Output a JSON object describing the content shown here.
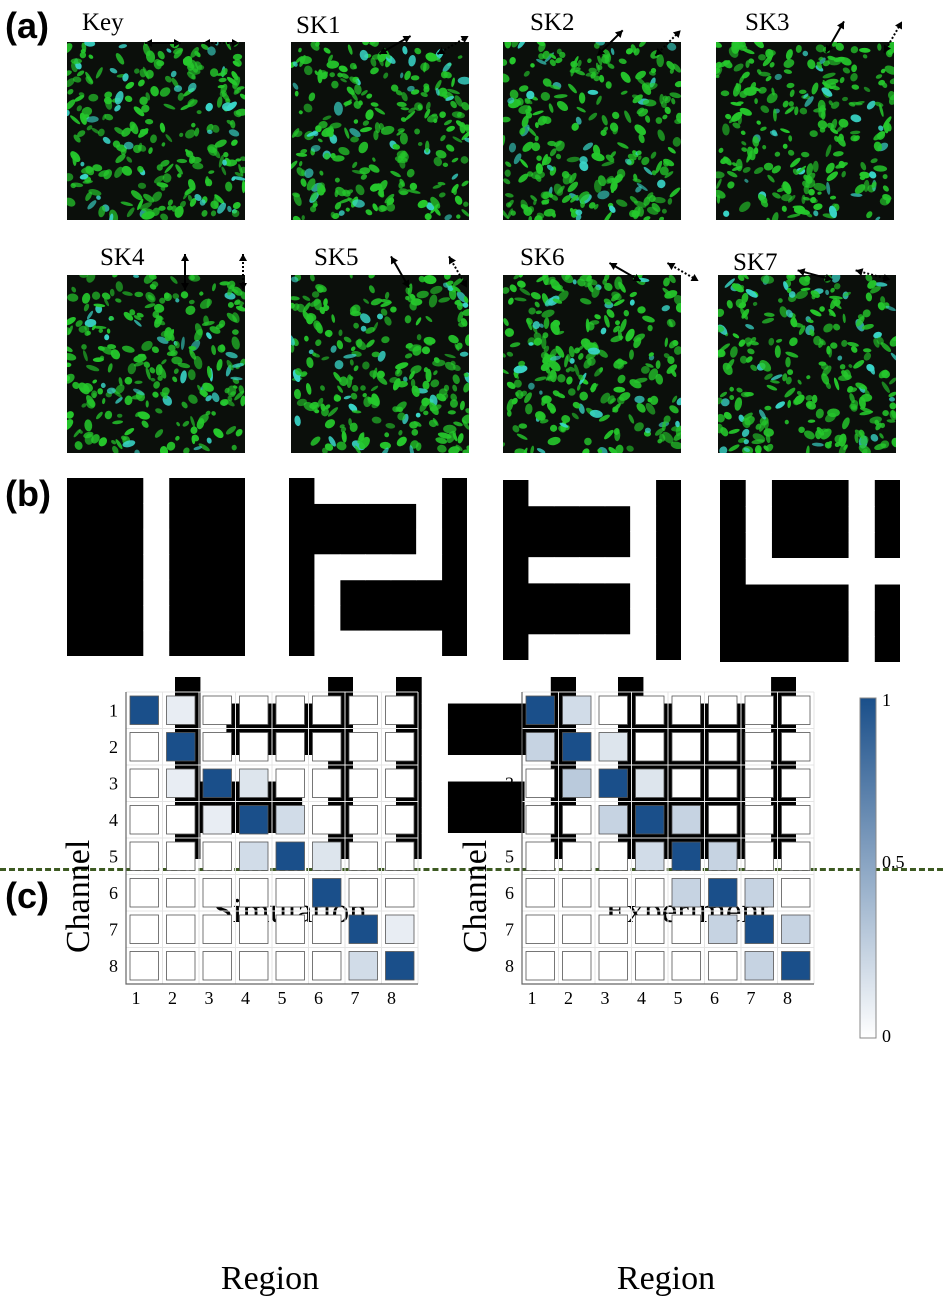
{
  "panels": {
    "a": "(a)",
    "b": "(b)",
    "c": "(c)"
  },
  "microscopy": {
    "labels": [
      "Key",
      "SK1",
      "SK2",
      "SK3",
      "SK4",
      "SK5",
      "SK6",
      "SK7"
    ],
    "colors": {
      "background": "#0b0f0b",
      "speckle": "#25c82c",
      "highlight": "#39d6c8"
    },
    "arrow_orientation_deg": [
      0,
      -30,
      -45,
      -60,
      90,
      60,
      30,
      15
    ]
  },
  "digits": [
    "1",
    "2",
    "3",
    "4",
    "5",
    "6",
    "7"
  ],
  "chart_data": [
    {
      "type": "heatmap",
      "title": "Simulation",
      "xlabel": "Region",
      "ylabel": "Channel",
      "x": [
        "1",
        "2",
        "3",
        "4",
        "5",
        "6",
        "7",
        "8"
      ],
      "y": [
        "1",
        "2",
        "3",
        "4",
        "5",
        "6",
        "7",
        "8"
      ],
      "values": [
        [
          1,
          0.1,
          0,
          0,
          0,
          0,
          0,
          0
        ],
        [
          0,
          1,
          0,
          0,
          0,
          0,
          0,
          0
        ],
        [
          0,
          0.1,
          1,
          0.15,
          0,
          0,
          0,
          0
        ],
        [
          0,
          0,
          0.1,
          1,
          0.2,
          0,
          0,
          0
        ],
        [
          0,
          0,
          0,
          0.2,
          1,
          0.15,
          0,
          0
        ],
        [
          0,
          0,
          0,
          0,
          0,
          1,
          0,
          0
        ],
        [
          0,
          0,
          0,
          0,
          0,
          0,
          1,
          0.1
        ],
        [
          0,
          0,
          0,
          0,
          0,
          0,
          0.2,
          1
        ]
      ],
      "colorscale": [
        "#ffffff",
        "#1a4f8a"
      ],
      "zlim": [
        0,
        1
      ]
    },
    {
      "type": "heatmap",
      "title": "Experiment",
      "xlabel": "Region",
      "ylabel": "Channel",
      "x": [
        "1",
        "2",
        "3",
        "4",
        "5",
        "6",
        "7",
        "8"
      ],
      "y": [
        "1",
        "2",
        "3",
        "4",
        "5",
        "6",
        "7",
        "8"
      ],
      "values": [
        [
          1,
          0.2,
          0,
          0,
          0,
          0,
          0,
          0
        ],
        [
          0.25,
          1,
          0.15,
          0,
          0,
          0,
          0,
          0
        ],
        [
          0,
          0.3,
          1,
          0.15,
          0,
          0,
          0,
          0
        ],
        [
          0,
          0,
          0.25,
          1,
          0.25,
          0,
          0,
          0
        ],
        [
          0,
          0,
          0,
          0.2,
          1,
          0.25,
          0,
          0
        ],
        [
          0,
          0,
          0,
          0,
          0.25,
          1,
          0.25,
          0
        ],
        [
          0,
          0,
          0,
          0,
          0,
          0.25,
          1,
          0.25
        ],
        [
          0,
          0,
          0,
          0,
          0,
          0,
          0.25,
          1
        ]
      ],
      "colorscale": [
        "#ffffff",
        "#1a4f8a"
      ],
      "zlim": [
        0,
        1
      ],
      "colorbar_ticks": [
        "1",
        "0.5",
        "0"
      ]
    }
  ]
}
